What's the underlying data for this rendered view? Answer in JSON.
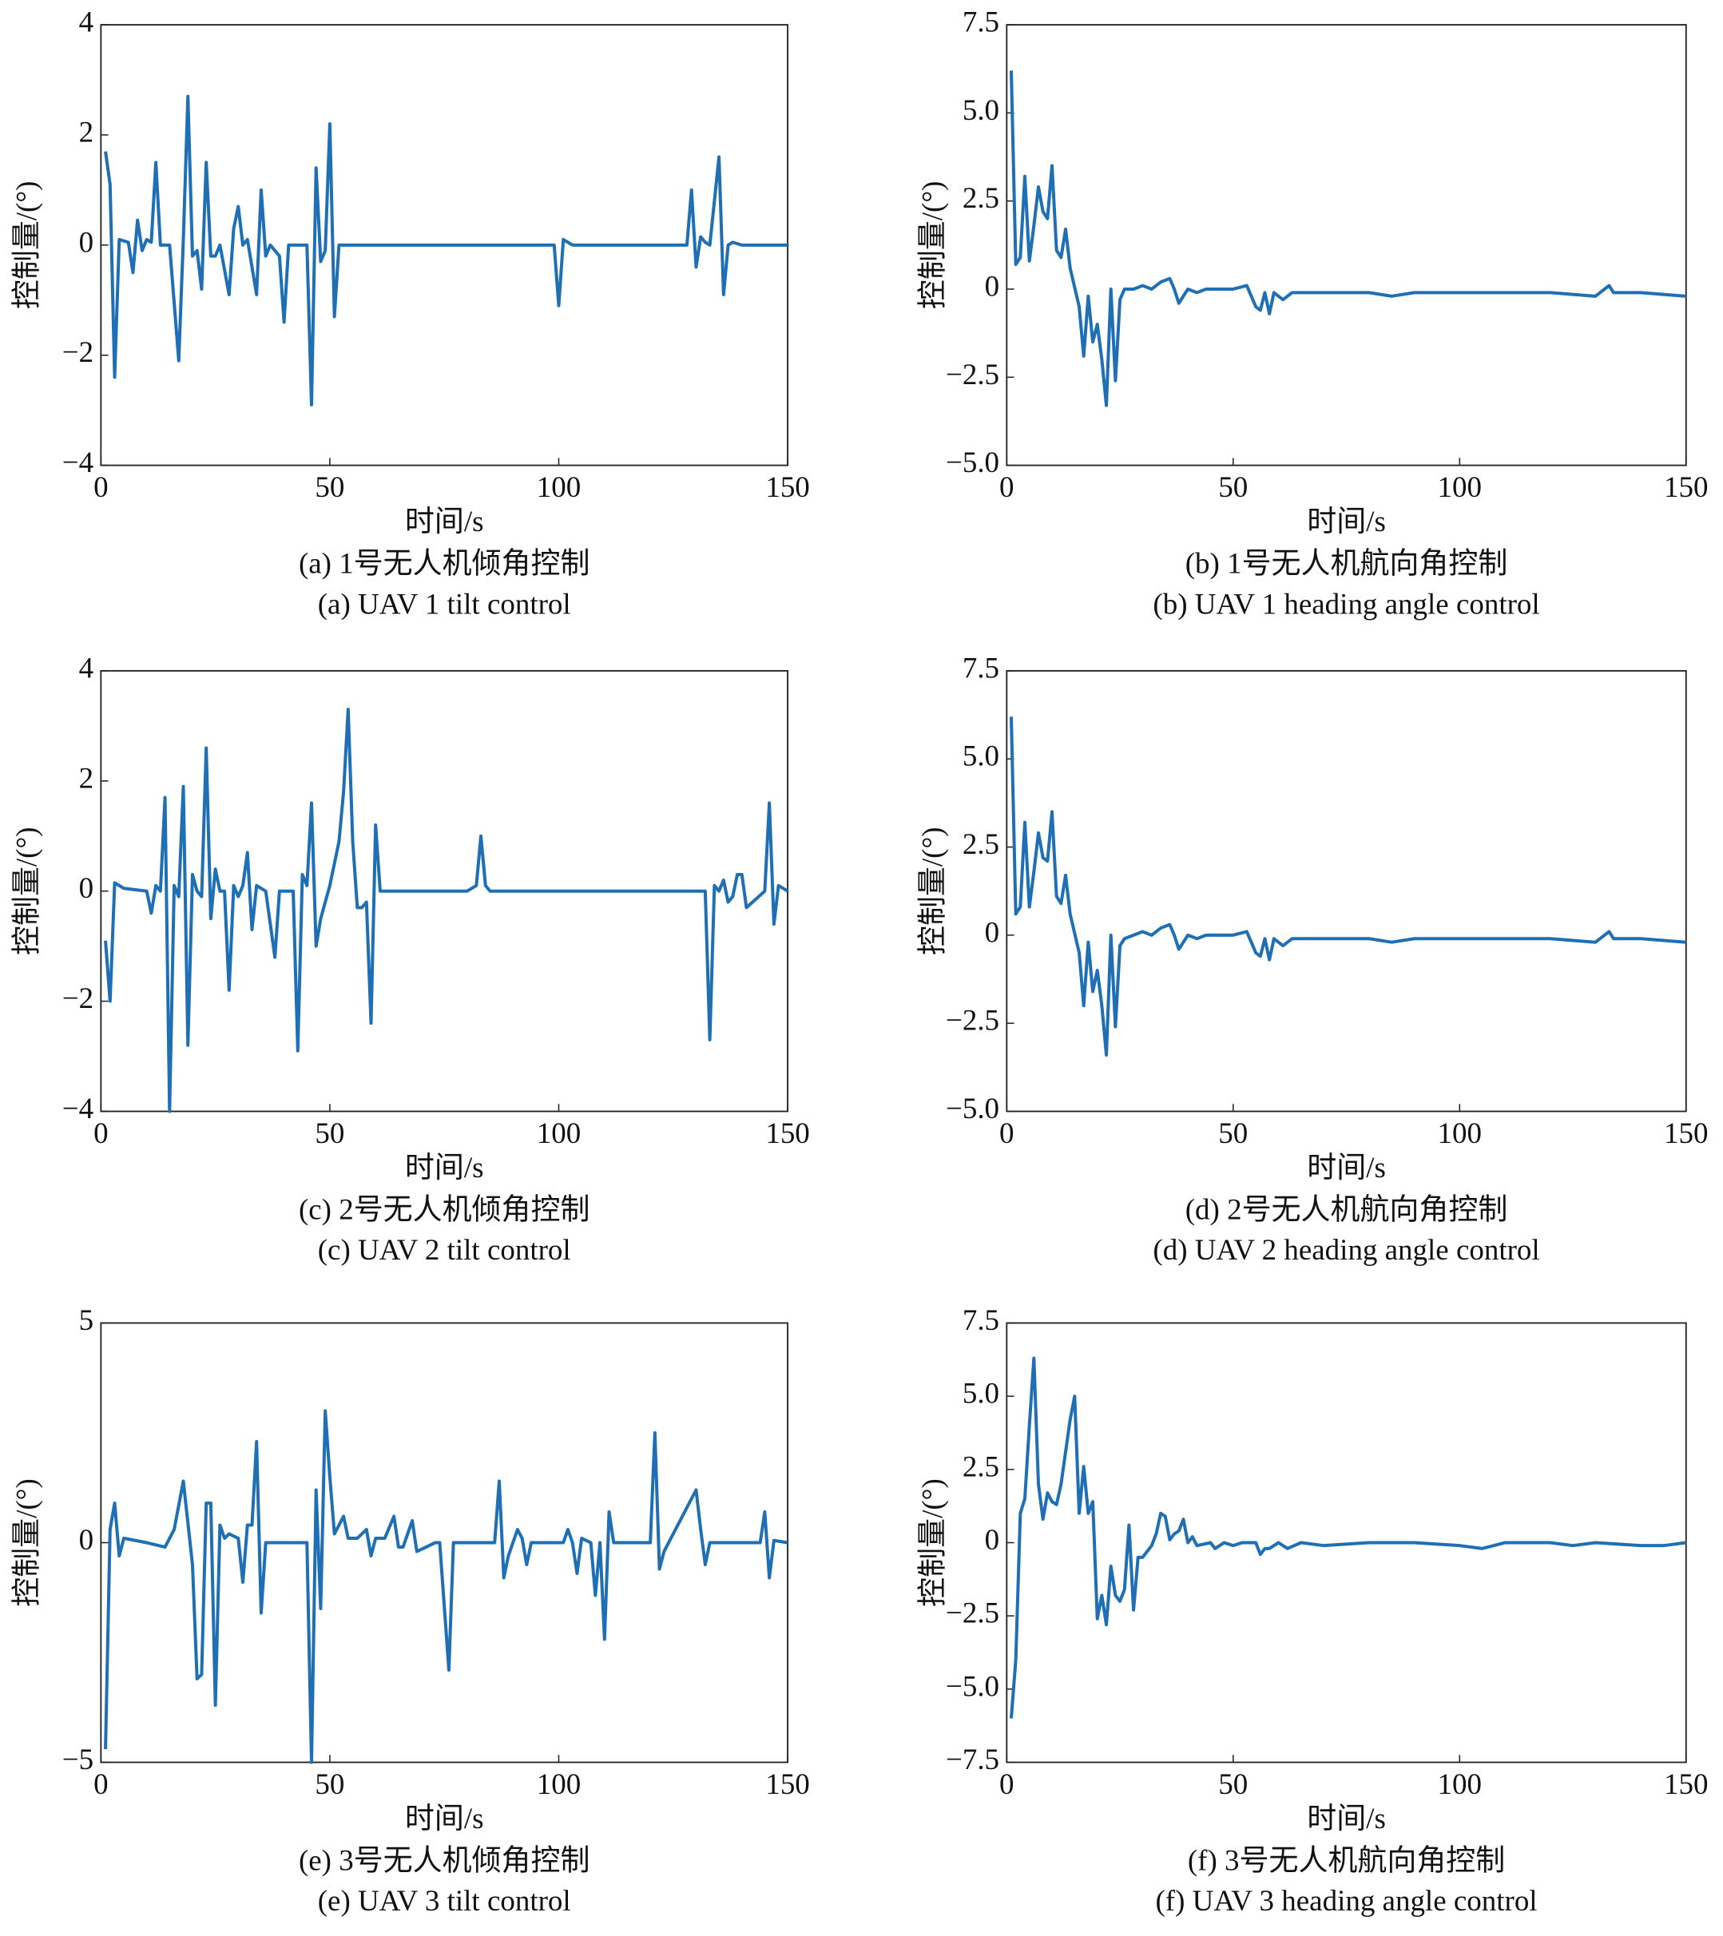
{
  "chart_data": [
    {
      "type": "line",
      "title": "(a) 1号无人机倾角控制",
      "subtitle": "(a) UAV 1 tilt control",
      "x_label": "时间/s",
      "y_label": "控制量/(°)",
      "color": "#1f6fb4",
      "xlim": [
        0,
        150
      ],
      "xticks": [
        0,
        50,
        100,
        150
      ],
      "ylim": [
        -4,
        4
      ],
      "yticks": [
        {
          "value": -4,
          "label": "−4"
        },
        {
          "value": -2,
          "label": "−2"
        },
        0,
        2,
        4
      ],
      "x": [
        1,
        2,
        3,
        4,
        6,
        7,
        8,
        9,
        10,
        11,
        12,
        13,
        15,
        17,
        18,
        19,
        20,
        21,
        22,
        23,
        24,
        25,
        26,
        28,
        29,
        30,
        31,
        32,
        34,
        35,
        36,
        37,
        39,
        40,
        41,
        45,
        46,
        47,
        48,
        49,
        50,
        51,
        52,
        60,
        99,
        100,
        101,
        102,
        103,
        128,
        129,
        130,
        131,
        132,
        133,
        135,
        136,
        137,
        138,
        140,
        150
      ],
      "values": [
        1.7,
        1.1,
        -2.4,
        0.1,
        0.05,
        -0.5,
        0.45,
        -0.1,
        0.1,
        0.05,
        1.5,
        0,
        0,
        -2.1,
        0.1,
        2.7,
        -0.2,
        -0.1,
        -0.8,
        1.5,
        -0.2,
        -0.2,
        0,
        -0.9,
        0.3,
        0.7,
        0,
        0.1,
        -0.9,
        1,
        -0.2,
        0,
        -0.2,
        -1.4,
        0,
        0,
        -2.9,
        1.4,
        -0.3,
        -0.1,
        2.2,
        -1.3,
        0,
        0,
        0,
        -1.1,
        0.1,
        0.05,
        0,
        0,
        1,
        -0.4,
        0.15,
        0.05,
        0,
        1.6,
        -0.9,
        0,
        0.05,
        0,
        0
      ]
    },
    {
      "type": "line",
      "title": "(b) 1号无人机航向角控制",
      "subtitle": "(b) UAV 1 heading angle control",
      "x_label": "时间/s",
      "y_label": "控制量/(°)",
      "color": "#1f6fb4",
      "xlim": [
        0,
        150
      ],
      "xticks": [
        0,
        50,
        100,
        150
      ],
      "ylim": [
        -5,
        7.5
      ],
      "yticks": [
        {
          "value": -5,
          "label": "−5.0"
        },
        {
          "value": -2.5,
          "label": "−2.5"
        },
        0,
        2.5,
        {
          "value": 5,
          "label": "5.0"
        },
        7.5
      ],
      "x": [
        1,
        2,
        3,
        4,
        5,
        6,
        7,
        8,
        9,
        10,
        11,
        12,
        13,
        14,
        16,
        17,
        18,
        19,
        20,
        21,
        22,
        23,
        24,
        25,
        26,
        28,
        30,
        32,
        34,
        36,
        37,
        38,
        40,
        42,
        44,
        50,
        53,
        55,
        56,
        57,
        58,
        59,
        61,
        63,
        65,
        70,
        80,
        85,
        90,
        100,
        110,
        120,
        130,
        133,
        134,
        140,
        150
      ],
      "values": [
        6.2,
        0.7,
        0.9,
        3.2,
        0.8,
        1.8,
        2.9,
        2.2,
        2.0,
        3.5,
        1.1,
        0.9,
        1.7,
        0.6,
        -0.5,
        -1.9,
        -0.2,
        -1.5,
        -1,
        -2,
        -3.3,
        0,
        -2.6,
        -0.3,
        0,
        0,
        0.1,
        0,
        0.2,
        0.3,
        0,
        -0.4,
        0,
        -0.1,
        0,
        0,
        0.1,
        -0.5,
        -0.6,
        -0.1,
        -0.7,
        -0.1,
        -0.3,
        -0.1,
        -0.1,
        -0.1,
        -0.1,
        -0.2,
        -0.1,
        -0.1,
        -0.1,
        -0.1,
        -0.2,
        0.1,
        -0.1,
        -0.1,
        -0.2
      ]
    },
    {
      "type": "line",
      "title": "(c) 2号无人机倾角控制",
      "subtitle": "(c) UAV 2 tilt control",
      "x_label": "时间/s",
      "y_label": "控制量/(°)",
      "color": "#1f6fb4",
      "xlim": [
        0,
        150
      ],
      "xticks": [
        0,
        50,
        100,
        150
      ],
      "ylim": [
        -4,
        4
      ],
      "yticks": [
        {
          "value": -4,
          "label": "−4"
        },
        {
          "value": -2,
          "label": "−2"
        },
        0,
        2,
        4
      ],
      "x": [
        1,
        2,
        3,
        5,
        10,
        11,
        12,
        13,
        14,
        15,
        16,
        17,
        18,
        19,
        20,
        21,
        22,
        23,
        24,
        25,
        26,
        27,
        28,
        29,
        30,
        31,
        32,
        33,
        34,
        36,
        38,
        39,
        42,
        43,
        44,
        45,
        46,
        47,
        48,
        50,
        52,
        53,
        54,
        55,
        56,
        57,
        58,
        59,
        60,
        61,
        80,
        82,
        83,
        84,
        85,
        132,
        133,
        134,
        135,
        136,
        137,
        138,
        139,
        140,
        141,
        145,
        146,
        147,
        148,
        150
      ],
      "values": [
        -0.9,
        -2,
        0.15,
        0.05,
        0,
        -0.4,
        0.1,
        0,
        1.7,
        -4,
        0.1,
        -0.1,
        1.9,
        -2.8,
        0.3,
        0,
        -0.1,
        2.6,
        -0.5,
        0.4,
        0,
        0,
        -1.8,
        0.1,
        -0.1,
        0.1,
        0.7,
        -0.7,
        0.1,
        0,
        -1.2,
        0,
        0,
        -2.9,
        0.3,
        0.1,
        1.6,
        -1,
        -0.5,
        0.1,
        0.9,
        1.8,
        3.3,
        0.9,
        -0.3,
        -0.3,
        -0.2,
        -2.4,
        1.2,
        0,
        0,
        0.1,
        1,
        0.1,
        0,
        0,
        -2.7,
        0.1,
        0,
        0.2,
        -0.2,
        -0.1,
        0.3,
        0.3,
        -0.3,
        0,
        1.6,
        -0.6,
        0.1,
        0
      ]
    },
    {
      "type": "line",
      "title": "(d) 2号无人机航向角控制",
      "subtitle": "(d) UAV 2 heading angle control",
      "x_label": "时间/s",
      "y_label": "控制量/(°)",
      "color": "#1f6fb4",
      "xlim": [
        0,
        150
      ],
      "xticks": [
        0,
        50,
        100,
        150
      ],
      "ylim": [
        -5,
        7.5
      ],
      "yticks": [
        {
          "value": -5,
          "label": "−5.0"
        },
        {
          "value": -2.5,
          "label": "−2.5"
        },
        0,
        2.5,
        {
          "value": 5,
          "label": "5.0"
        },
        7.5
      ],
      "x": [
        1,
        2,
        3,
        4,
        5,
        6,
        7,
        8,
        9,
        10,
        11,
        12,
        13,
        14,
        16,
        17,
        18,
        19,
        20,
        21,
        22,
        23,
        24,
        25,
        26,
        28,
        30,
        32,
        34,
        36,
        37,
        38,
        40,
        42,
        44,
        50,
        53,
        55,
        56,
        57,
        58,
        59,
        61,
        63,
        65,
        70,
        80,
        85,
        90,
        100,
        110,
        120,
        130,
        133,
        134,
        140,
        150
      ],
      "values": [
        6.2,
        0.6,
        0.8,
        3.2,
        0.8,
        1.8,
        2.9,
        2.2,
        2.1,
        3.5,
        1.1,
        0.9,
        1.7,
        0.6,
        -0.5,
        -2,
        -0.2,
        -1.6,
        -1,
        -2,
        -3.4,
        0,
        -2.6,
        -0.3,
        -0.1,
        0,
        0.1,
        0,
        0.2,
        0.3,
        0,
        -0.4,
        0,
        -0.1,
        0,
        0,
        0.1,
        -0.5,
        -0.6,
        -0.1,
        -0.7,
        -0.1,
        -0.3,
        -0.1,
        -0.1,
        -0.1,
        -0.1,
        -0.2,
        -0.1,
        -0.1,
        -0.1,
        -0.1,
        -0.2,
        0.1,
        -0.1,
        -0.1,
        -0.2
      ]
    },
    {
      "type": "line",
      "title": "(e) 3号无人机倾角控制",
      "subtitle": "(e) UAV 3 tilt control",
      "x_label": "时间/s",
      "y_label": "控制量/(°)",
      "color": "#1f6fb4",
      "xlim": [
        0,
        150
      ],
      "xticks": [
        0,
        50,
        100,
        150
      ],
      "ylim": [
        -5,
        5
      ],
      "yticks": [
        {
          "value": -5,
          "label": "−5"
        },
        0,
        5
      ],
      "x": [
        1,
        2,
        3,
        4,
        5,
        10,
        14,
        16,
        18,
        20,
        21,
        22,
        23,
        24,
        25,
        26,
        27,
        28,
        30,
        31,
        32,
        33,
        34,
        35,
        36,
        45,
        46,
        47,
        48,
        49,
        50,
        51,
        53,
        54,
        56,
        58,
        59,
        60,
        62,
        64,
        65,
        66,
        68,
        69,
        73,
        74,
        76,
        77,
        86,
        87,
        88,
        89,
        91,
        92,
        93,
        94,
        101,
        102,
        103,
        104,
        105,
        107,
        108,
        109,
        110,
        111,
        112,
        120,
        121,
        122,
        123,
        124,
        130,
        131,
        132,
        133,
        144,
        145,
        146,
        147,
        150
      ],
      "values": [
        -4.7,
        0.3,
        0.9,
        -0.3,
        0.1,
        0,
        -0.1,
        0.3,
        1.4,
        -0.5,
        -3.1,
        -3,
        0.9,
        0.9,
        -3.7,
        0.4,
        0.1,
        0.2,
        0.1,
        -0.9,
        0.4,
        0.4,
        2.3,
        -1.6,
        0,
        0,
        -5,
        1.2,
        -1.5,
        3,
        1.5,
        0.2,
        0.6,
        0.1,
        0.1,
        0.3,
        -0.3,
        0.1,
        0.1,
        0.6,
        -0.1,
        -0.1,
        0.5,
        -0.2,
        0,
        0,
        -2.9,
        0,
        0,
        1.4,
        -0.8,
        -0.3,
        0.3,
        0.1,
        -0.5,
        0,
        0,
        0.3,
        0,
        -0.7,
        0.1,
        0,
        -1.2,
        0,
        -2.2,
        0.7,
        0,
        0,
        2.5,
        -0.6,
        -0.2,
        0,
        1.2,
        0.3,
        -0.5,
        0,
        0,
        0.7,
        -0.8,
        0.05,
        0
      ]
    },
    {
      "type": "line",
      "title": "(f) 3号无人机航向角控制",
      "subtitle": "(f) UAV 3 heading angle control",
      "x_label": "时间/s",
      "y_label": "控制量/(°)",
      "color": "#1f6fb4",
      "xlim": [
        0,
        150
      ],
      "xticks": [
        0,
        50,
        100,
        150
      ],
      "ylim": [
        -7.5,
        7.5
      ],
      "yticks": [
        {
          "value": -7.5,
          "label": "−7.5"
        },
        {
          "value": -5,
          "label": "−5.0"
        },
        {
          "value": -2.5,
          "label": "−2.5"
        },
        0,
        2.5,
        {
          "value": 5,
          "label": "5.0"
        },
        7.5
      ],
      "x": [
        1,
        2,
        3,
        4,
        5,
        6,
        7,
        8,
        9,
        10,
        11,
        12,
        14,
        15,
        16,
        17,
        18,
        19,
        20,
        21,
        22,
        23,
        24,
        25,
        26,
        27,
        28,
        29,
        30,
        32,
        33,
        34,
        35,
        36,
        37,
        38,
        39,
        40,
        41,
        42,
        45,
        46,
        48,
        50,
        52,
        55,
        56,
        57,
        58,
        59,
        60,
        62,
        65,
        70,
        80,
        90,
        100,
        105,
        110,
        120,
        125,
        130,
        140,
        145,
        150
      ],
      "values": [
        -6,
        -4,
        1,
        1.5,
        4,
        6.3,
        2,
        0.8,
        1.7,
        1.4,
        1.3,
        2,
        4.2,
        5,
        1,
        2.6,
        1,
        1.4,
        -2.6,
        -1.8,
        -2.8,
        -0.8,
        -1.8,
        -2,
        -1.6,
        0.6,
        -2.3,
        -0.5,
        -0.5,
        -0.1,
        0.3,
        1,
        0.9,
        0.1,
        0.3,
        0.4,
        0.8,
        0,
        0.2,
        -0.1,
        0,
        -0.2,
        0,
        -0.1,
        0,
        0,
        -0.4,
        -0.2,
        -0.2,
        -0.1,
        0,
        -0.2,
        0,
        -0.1,
        0,
        0,
        -0.1,
        -0.2,
        0,
        0,
        -0.1,
        0,
        -0.1,
        -0.1,
        0
      ]
    }
  ]
}
